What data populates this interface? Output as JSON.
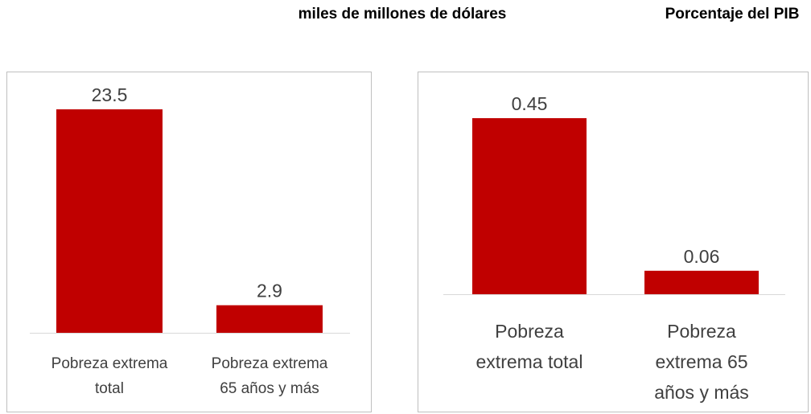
{
  "headers": {
    "left": "miles de  millones de dólares",
    "right": "Porcentaje del PIB"
  },
  "chart_data": [
    {
      "type": "bar",
      "title": "",
      "unit": "miles de millones de dólares",
      "categories": [
        "Pobreza extrema total",
        "Pobreza extrema 65 años y más"
      ],
      "category_lines": [
        [
          "Pobreza extrema",
          "total"
        ],
        [
          "Pobreza extrema",
          "65 años y más"
        ]
      ],
      "values": [
        23.5,
        2.9
      ],
      "value_labels": [
        "23.5",
        "2.9"
      ],
      "ylim": [
        0,
        23.5
      ],
      "grid": false,
      "legend": "none",
      "color": "#c00000"
    },
    {
      "type": "bar",
      "title": "",
      "unit": "Porcentaje del PIB",
      "categories": [
        "Pobreza extrema total",
        "Pobreza extrema 65 años y más"
      ],
      "category_lines": [
        [
          "Pobreza",
          "extrema total"
        ],
        [
          "Pobreza",
          "extrema 65",
          "años y más"
        ]
      ],
      "values": [
        0.45,
        0.06
      ],
      "value_labels": [
        "0.45",
        "0.06"
      ],
      "ylim": [
        0,
        0.45
      ],
      "grid": false,
      "legend": "none",
      "color": "#c00000"
    }
  ]
}
